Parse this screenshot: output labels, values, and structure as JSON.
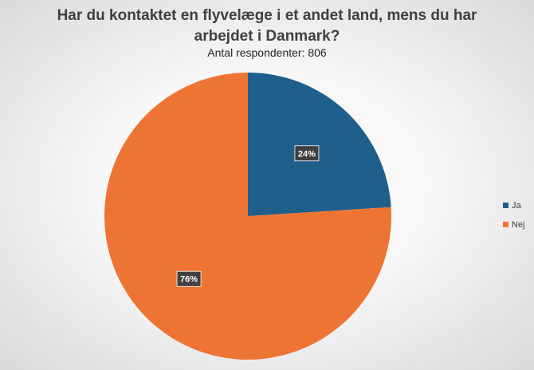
{
  "chart_data": {
    "type": "pie",
    "title_line1": "Har du kontaktet en flyvelæge i et andet land, mens du har",
    "title_line2": "arbejdet i Danmark?",
    "subtitle": "Antal respondenter: 806",
    "slices": [
      {
        "name": "Ja",
        "value": 24,
        "label": "24%",
        "color": "#1f5f8b"
      },
      {
        "name": "Nej",
        "value": 76,
        "label": "76%",
        "color": "#ee7434"
      }
    ],
    "legend_position": "right"
  }
}
